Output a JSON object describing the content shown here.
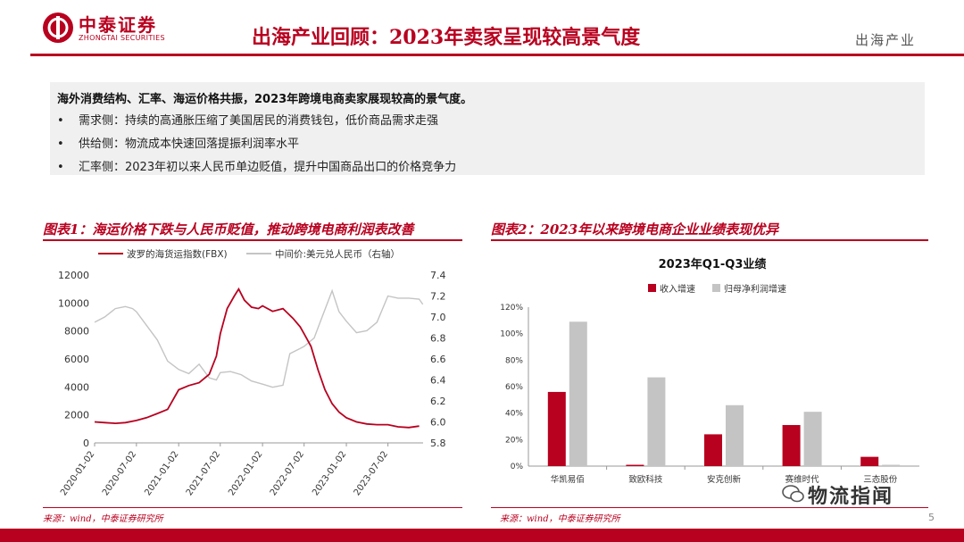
{
  "header": {
    "logo_cn": "中泰证券",
    "logo_en": "ZHONGTAI SECURITIES",
    "title": "出海产业回顾：2023年卖家呈现较高景气度",
    "section": "出海产业"
  },
  "summary": {
    "headline": "海外消费结构、汇率、海运价格共振，2023年跨境电商卖家展现较高的景气度。",
    "bullets": [
      "需求侧：持续的高通胀压缩了美国居民的消费钱包，低价商品需求走强",
      "供给侧：物流成本快速回落提振利润率水平",
      "汇率侧：2023年初以来人民币单边贬值，提升中国商品出口的价格竞争力"
    ]
  },
  "figure1": {
    "title": "图表1：海运价格下跌与人民币贬值，推动跨境电商利润表改善",
    "source": "来源：wind，中泰证券研究所"
  },
  "figure2": {
    "title": "图表2：2023年以来跨境电商企业业绩表现优异",
    "source": "来源：wind，中泰证券研究所"
  },
  "footer": {
    "page": "5",
    "watermark": "物流指闻"
  },
  "colors": {
    "brand": "#b8001f",
    "gray_series": "#c4c4c4"
  },
  "chart_data": [
    {
      "type": "line",
      "x_ticks": [
        "2020-01-02",
        "2020-07-02",
        "2021-01-02",
        "2021-07-02",
        "2022-01-02",
        "2022-07-02",
        "2023-01-02",
        "2023-07-02"
      ],
      "ylim_left": [
        0,
        12000
      ],
      "yticks_left": [
        "0",
        "2000",
        "4000",
        "6000",
        "8000",
        "10000",
        "12000"
      ],
      "ylim_right": [
        5.8,
        7.4
      ],
      "yticks_right": [
        "5.8",
        "6.0",
        "6.2",
        "6.4",
        "6.6",
        "6.8",
        "7.0",
        "7.2",
        "7.4"
      ],
      "legend_position": "top",
      "series": [
        {
          "name": "波罗的海货运指数(FBX)",
          "axis": "left",
          "color": "#b8001f",
          "points": [
            [
              "2020-01-02",
              1500
            ],
            [
              "2020-02-15",
              1450
            ],
            [
              "2020-04-01",
              1400
            ],
            [
              "2020-05-15",
              1450
            ],
            [
              "2020-07-02",
              1600
            ],
            [
              "2020-08-15",
              1800
            ],
            [
              "2020-10-01",
              2100
            ],
            [
              "2020-11-15",
              2400
            ],
            [
              "2021-01-02",
              3800
            ],
            [
              "2021-02-15",
              4100
            ],
            [
              "2021-04-01",
              4300
            ],
            [
              "2021-05-15",
              4900
            ],
            [
              "2021-06-15",
              6200
            ],
            [
              "2021-07-02",
              7800
            ],
            [
              "2021-08-01",
              9600
            ],
            [
              "2021-09-01",
              10500
            ],
            [
              "2021-09-20",
              11000
            ],
            [
              "2021-10-15",
              10200
            ],
            [
              "2021-11-15",
              9700
            ],
            [
              "2021-12-15",
              9600
            ],
            [
              "2022-01-02",
              9800
            ],
            [
              "2022-02-15",
              9400
            ],
            [
              "2022-04-01",
              9600
            ],
            [
              "2022-05-15",
              8900
            ],
            [
              "2022-06-15",
              8300
            ],
            [
              "2022-07-02",
              7800
            ],
            [
              "2022-08-01",
              6900
            ],
            [
              "2022-09-01",
              5200
            ],
            [
              "2022-10-01",
              3800
            ],
            [
              "2022-11-01",
              2800
            ],
            [
              "2022-12-01",
              2200
            ],
            [
              "2023-01-02",
              1800
            ],
            [
              "2023-02-15",
              1500
            ],
            [
              "2023-04-01",
              1350
            ],
            [
              "2023-05-15",
              1300
            ],
            [
              "2023-07-02",
              1300
            ],
            [
              "2023-08-15",
              1150
            ],
            [
              "2023-10-01",
              1100
            ],
            [
              "2023-11-15",
              1200
            ]
          ]
        },
        {
          "name": "中间价:美元兑人民币（右轴）",
          "axis": "right",
          "color": "#c4c4c4",
          "points": [
            [
              "2020-01-02",
              6.95
            ],
            [
              "2020-02-15",
              7.0
            ],
            [
              "2020-04-01",
              7.08
            ],
            [
              "2020-05-15",
              7.1
            ],
            [
              "2020-06-15",
              7.08
            ],
            [
              "2020-07-02",
              7.05
            ],
            [
              "2020-08-15",
              6.92
            ],
            [
              "2020-10-01",
              6.78
            ],
            [
              "2020-11-15",
              6.58
            ],
            [
              "2021-01-02",
              6.5
            ],
            [
              "2021-02-15",
              6.46
            ],
            [
              "2021-04-01",
              6.55
            ],
            [
              "2021-05-15",
              6.42
            ],
            [
              "2021-06-15",
              6.4
            ],
            [
              "2021-07-02",
              6.47
            ],
            [
              "2021-08-15",
              6.48
            ],
            [
              "2021-10-01",
              6.45
            ],
            [
              "2021-11-15",
              6.39
            ],
            [
              "2022-01-02",
              6.36
            ],
            [
              "2022-02-15",
              6.33
            ],
            [
              "2022-04-01",
              6.35
            ],
            [
              "2022-05-01",
              6.65
            ],
            [
              "2022-06-15",
              6.7
            ],
            [
              "2022-07-02",
              6.72
            ],
            [
              "2022-08-15",
              6.8
            ],
            [
              "2022-09-15",
              6.98
            ],
            [
              "2022-11-01",
              7.25
            ],
            [
              "2022-12-01",
              7.05
            ],
            [
              "2023-01-02",
              6.96
            ],
            [
              "2023-02-15",
              6.85
            ],
            [
              "2023-04-01",
              6.87
            ],
            [
              "2023-05-15",
              6.95
            ],
            [
              "2023-07-02",
              7.2
            ],
            [
              "2023-08-15",
              7.18
            ],
            [
              "2023-10-01",
              7.18
            ],
            [
              "2023-11-15",
              7.17
            ],
            [
              "2023-12-01",
              7.12
            ]
          ]
        }
      ]
    },
    {
      "type": "bar",
      "title": "2023年Q1-Q3业绩",
      "categories": [
        "华凯易佰",
        "致欧科技",
        "安克创新",
        "赛维时代",
        "三态股份"
      ],
      "ylim": [
        0,
        1.2
      ],
      "yticks": [
        "0%",
        "20%",
        "40%",
        "60%",
        "80%",
        "100%",
        "120%"
      ],
      "legend_position": "top-left",
      "series": [
        {
          "name": "收入增速",
          "color": "#b8001f",
          "values": [
            0.56,
            0.01,
            0.24,
            0.31,
            0.07
          ]
        },
        {
          "name": "归母净利润增速",
          "color": "#c4c4c4",
          "values": [
            1.09,
            0.67,
            0.46,
            0.41,
            0.01
          ]
        }
      ]
    }
  ]
}
